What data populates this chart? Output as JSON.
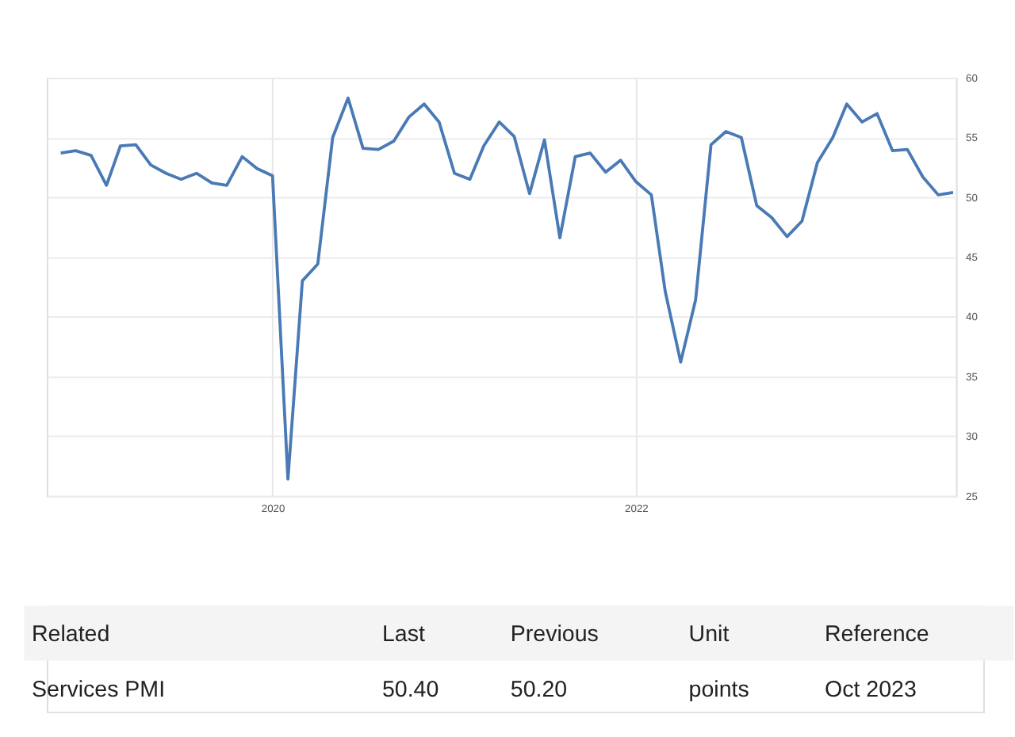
{
  "chart_data": {
    "type": "line",
    "x": [
      "2018-11",
      "2018-12",
      "2019-01",
      "2019-02",
      "2019-03",
      "2019-04",
      "2019-05",
      "2019-06",
      "2019-07",
      "2019-08",
      "2019-09",
      "2019-10",
      "2019-11",
      "2019-12",
      "2020-01",
      "2020-02",
      "2020-03",
      "2020-04",
      "2020-05",
      "2020-06",
      "2020-07",
      "2020-08",
      "2020-09",
      "2020-10",
      "2020-11",
      "2020-12",
      "2021-01",
      "2021-02",
      "2021-03",
      "2021-04",
      "2021-05",
      "2021-06",
      "2021-07",
      "2021-08",
      "2021-09",
      "2021-10",
      "2021-11",
      "2021-12",
      "2022-01",
      "2022-02",
      "2022-03",
      "2022-04",
      "2022-05",
      "2022-06",
      "2022-07",
      "2022-08",
      "2022-09",
      "2022-10",
      "2022-11",
      "2022-12",
      "2023-01",
      "2023-02",
      "2023-03",
      "2023-04",
      "2023-05",
      "2023-06",
      "2023-07",
      "2023-08",
      "2023-09",
      "2023-10"
    ],
    "series": [
      {
        "color": "#4a7ab5",
        "values": [
          53.7,
          53.9,
          53.5,
          51.0,
          54.3,
          54.4,
          52.7,
          52.0,
          51.5,
          52.0,
          51.2,
          51.0,
          53.4,
          52.4,
          51.8,
          26.4,
          43.0,
          44.4,
          55.0,
          58.3,
          54.1,
          54.0,
          54.7,
          56.7,
          57.8,
          56.3,
          52.0,
          51.5,
          54.3,
          56.3,
          55.1,
          50.3,
          54.8,
          46.6,
          53.4,
          53.7,
          52.1,
          53.1,
          51.3,
          50.2,
          42.1,
          36.2,
          41.4,
          54.4,
          55.5,
          55.0,
          49.3,
          48.3,
          46.7,
          48.0,
          52.9,
          55.0,
          57.8,
          56.3,
          57.0,
          53.9,
          54.0,
          51.7,
          50.2,
          50.4
        ]
      }
    ],
    "xlim": [
      "2018-10-04",
      "2023-10-07"
    ],
    "xticks": [
      "2020",
      "2022"
    ],
    "ylim": [
      25,
      60
    ],
    "yticks": [
      25,
      30,
      35,
      40,
      45,
      50,
      55,
      60
    ],
    "grid": true,
    "line_style": "solid",
    "marker": "none",
    "annotations": [
      "Related",
      "Last",
      "Previous",
      "Unit",
      "Reference",
      "Services PMI",
      "50.40",
      "50.20",
      "points",
      "Oct 2023"
    ]
  }
}
